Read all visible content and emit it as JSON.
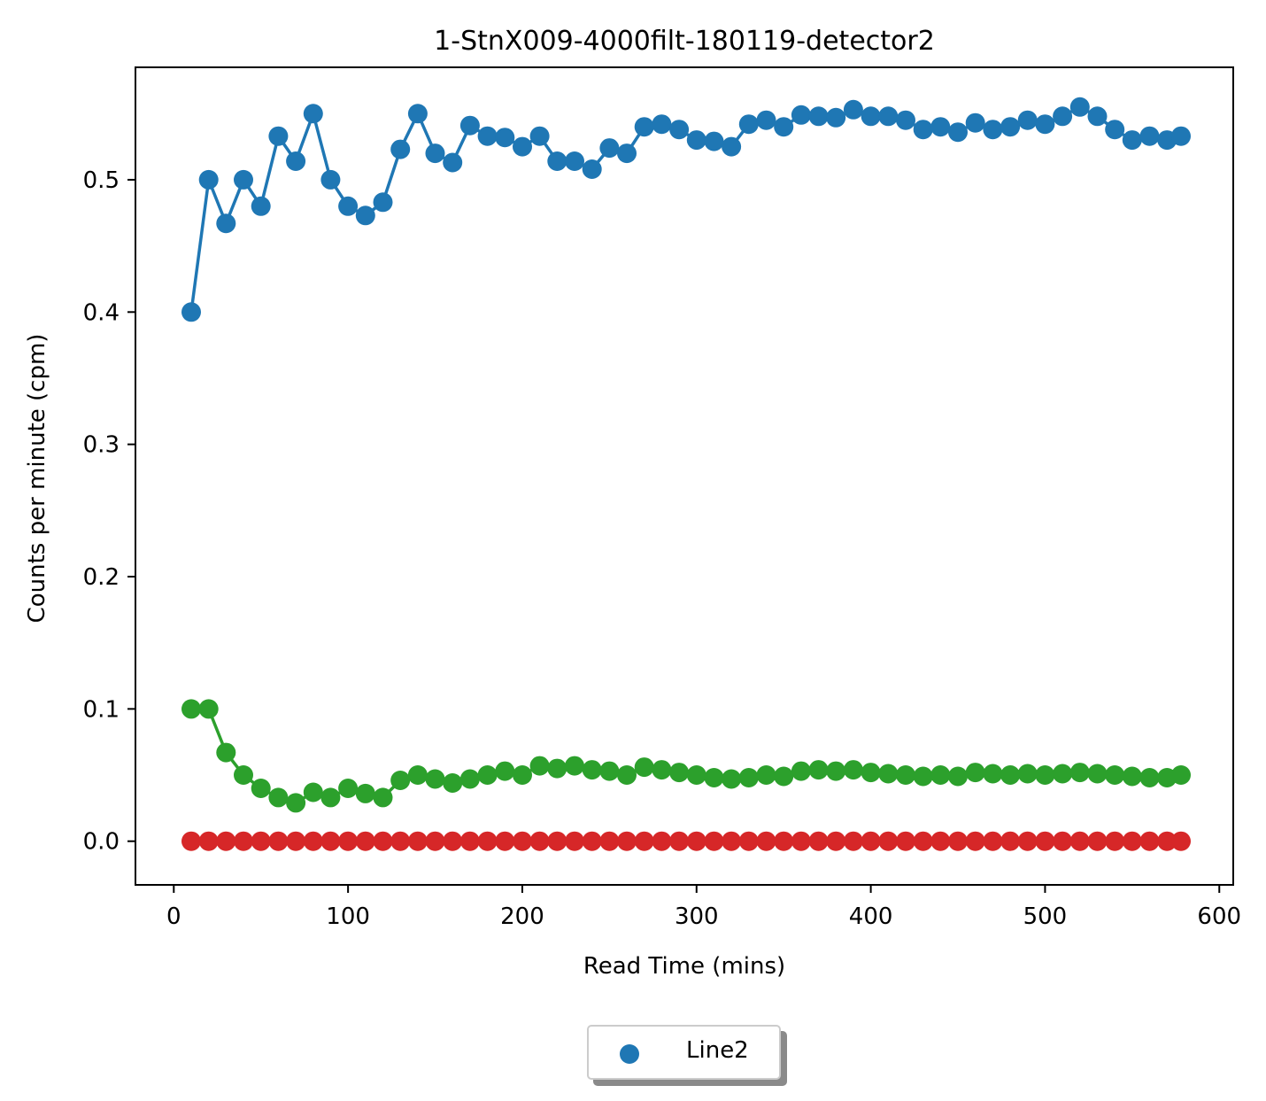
{
  "chart_data": {
    "type": "line",
    "title": "1-StnX009-4000filt-180119-detector2",
    "xlabel": "Read Time (mins)",
    "ylabel": "Counts per minute (cpm)",
    "xlim": [
      -22,
      608
    ],
    "ylim": [
      -0.033,
      0.585
    ],
    "xticks": [
      0,
      100,
      200,
      300,
      400,
      500,
      600
    ],
    "yticks": [
      0.0,
      0.1,
      0.2,
      0.3,
      0.4,
      0.5
    ],
    "xtick_labels": [
      "0",
      "100",
      "200",
      "300",
      "400",
      "500",
      "600"
    ],
    "ytick_labels": [
      "0.0",
      "0.1",
      "0.2",
      "0.3",
      "0.4",
      "0.5"
    ],
    "grid": false,
    "legend_position": "bottom-center",
    "x": [
      10,
      20,
      30,
      40,
      50,
      60,
      70,
      80,
      90,
      100,
      110,
      120,
      130,
      140,
      150,
      160,
      170,
      180,
      190,
      200,
      210,
      220,
      230,
      240,
      250,
      260,
      270,
      280,
      290,
      300,
      310,
      320,
      330,
      340,
      350,
      360,
      370,
      380,
      390,
      400,
      410,
      420,
      430,
      440,
      450,
      460,
      470,
      480,
      490,
      500,
      510,
      520,
      530,
      540,
      550,
      560,
      570,
      578
    ],
    "series": [
      {
        "name": "Line2",
        "color": "#1f77b4",
        "values": [
          0.4,
          0.5,
          0.467,
          0.5,
          0.48,
          0.533,
          0.514,
          0.55,
          0.5,
          0.48,
          0.473,
          0.483,
          0.523,
          0.55,
          0.52,
          0.513,
          0.541,
          0.533,
          0.532,
          0.525,
          0.533,
          0.514,
          0.514,
          0.508,
          0.524,
          0.52,
          0.54,
          0.542,
          0.538,
          0.53,
          0.529,
          0.525,
          0.542,
          0.545,
          0.54,
          0.549,
          0.548,
          0.547,
          0.553,
          0.548,
          0.548,
          0.545,
          0.538,
          0.54,
          0.536,
          0.543,
          0.538,
          0.54,
          0.545,
          0.542,
          0.548,
          0.555,
          0.548,
          0.538,
          0.53,
          0.533,
          0.53,
          0.533
        ]
      },
      {
        "color": "#2ca02c",
        "values": [
          0.1,
          0.1,
          0.067,
          0.05,
          0.04,
          0.033,
          0.029,
          0.037,
          0.033,
          0.04,
          0.036,
          0.033,
          0.046,
          0.05,
          0.047,
          0.044,
          0.047,
          0.05,
          0.053,
          0.05,
          0.057,
          0.055,
          0.057,
          0.054,
          0.053,
          0.05,
          0.056,
          0.054,
          0.052,
          0.05,
          0.048,
          0.047,
          0.048,
          0.05,
          0.049,
          0.053,
          0.054,
          0.053,
          0.054,
          0.052,
          0.051,
          0.05,
          0.049,
          0.05,
          0.049,
          0.052,
          0.051,
          0.05,
          0.051,
          0.05,
          0.051,
          0.052,
          0.051,
          0.05,
          0.049,
          0.048,
          0.048,
          0.05
        ]
      },
      {
        "color": "#d62728",
        "values": [
          0,
          0,
          0,
          0,
          0,
          0,
          0,
          0,
          0,
          0,
          0,
          0,
          0,
          0,
          0,
          0,
          0,
          0,
          0,
          0,
          0,
          0,
          0,
          0,
          0,
          0,
          0,
          0,
          0,
          0,
          0,
          0,
          0,
          0,
          0,
          0,
          0,
          0,
          0,
          0,
          0,
          0,
          0,
          0,
          0,
          0,
          0,
          0,
          0,
          0,
          0,
          0,
          0,
          0,
          0,
          0,
          0,
          0
        ]
      }
    ],
    "legend": [
      {
        "label": "Line2",
        "color": "#1f77b4"
      }
    ]
  }
}
